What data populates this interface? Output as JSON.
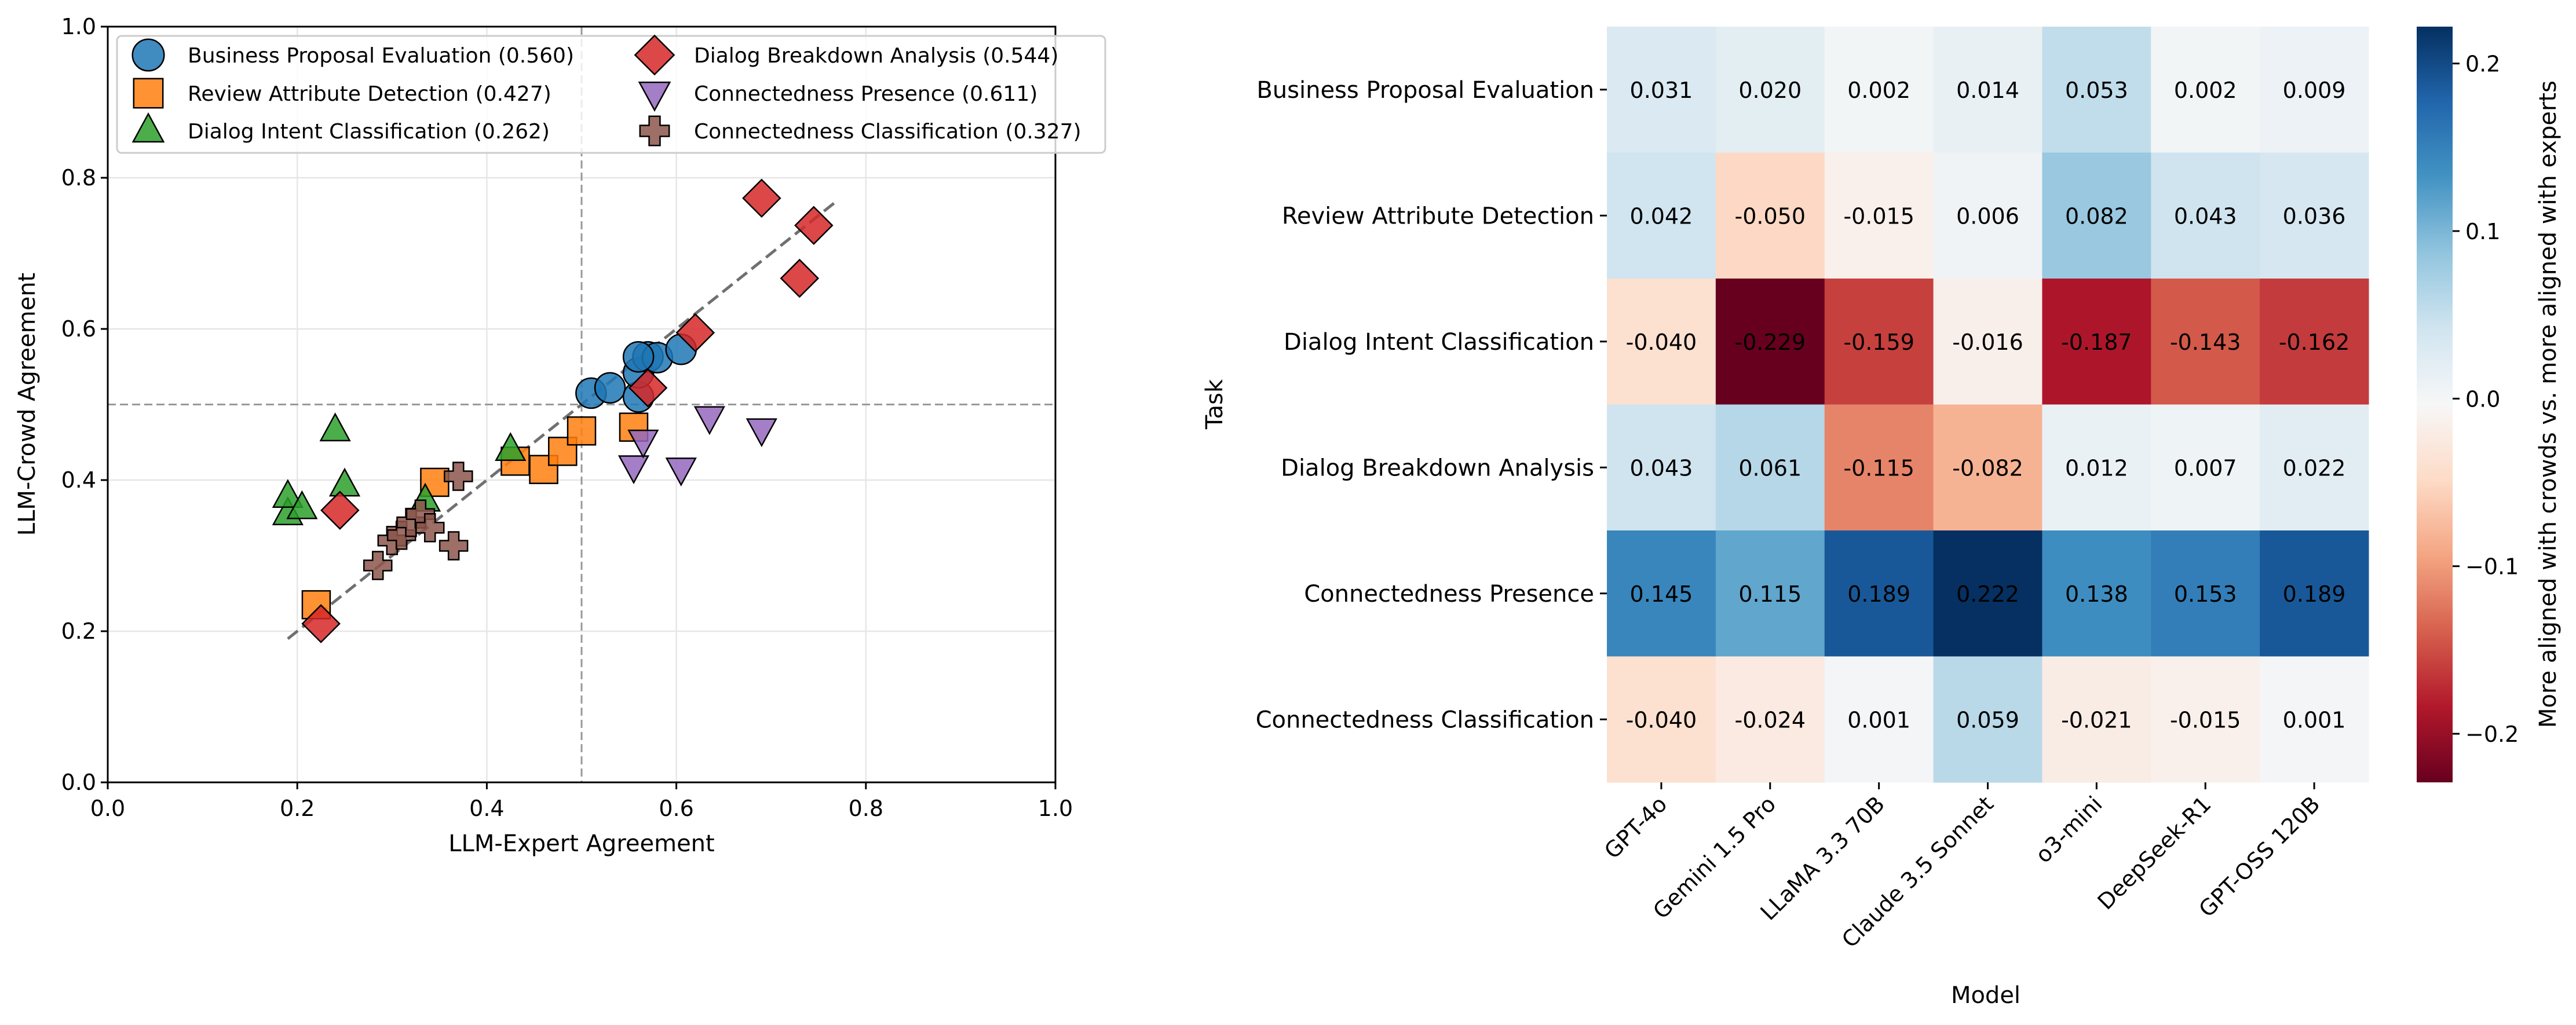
{
  "chart_data": [
    {
      "type": "scatter",
      "title": "",
      "xlabel": "LLM-Expert Agreement",
      "ylabel": "LLM-Crowd Agreement",
      "xlim": [
        0.0,
        1.0
      ],
      "ylim": [
        0.0,
        1.0
      ],
      "xticks": [
        "0.0",
        "0.2",
        "0.4",
        "0.6",
        "0.8",
        "1.0"
      ],
      "yticks": [
        "0.0",
        "0.2",
        "0.4",
        "0.6",
        "0.8",
        "1.0"
      ],
      "grid": true,
      "legend_position": "upper-left",
      "reference_lines": {
        "vertical_x": 0.5,
        "horizontal_y": 0.5
      },
      "trend_line": {
        "x": [
          0.19,
          0.77
        ],
        "y": [
          0.19,
          0.77
        ]
      },
      "series": [
        {
          "name": "Business Proposal Evaluation",
          "legend": "Business Proposal Evaluation (0.560)",
          "marker": "circle",
          "color": "#1f77b4",
          "x": [
            0.51,
            0.53,
            0.56,
            0.56,
            0.57,
            0.58,
            0.605,
            0.56
          ],
          "y": [
            0.515,
            0.522,
            0.51,
            0.542,
            0.563,
            0.562,
            0.573,
            0.563
          ]
        },
        {
          "name": "Review Attribute Detection",
          "legend": "Review Attribute Detection (0.427)",
          "marker": "square",
          "color": "#ff7f0e",
          "x": [
            0.22,
            0.345,
            0.43,
            0.46,
            0.48,
            0.5,
            0.555
          ],
          "y": [
            0.235,
            0.397,
            0.425,
            0.414,
            0.438,
            0.465,
            0.47
          ]
        },
        {
          "name": "Dialog Intent Classification",
          "legend": "Dialog Intent Classification (0.262)",
          "marker": "triangle-up",
          "color": "#2ca02c",
          "x": [
            0.19,
            0.19,
            0.205,
            0.24,
            0.25,
            0.335,
            0.425
          ],
          "y": [
            0.355,
            0.378,
            0.363,
            0.466,
            0.393,
            0.373,
            0.44
          ]
        },
        {
          "name": "Dialog Breakdown Analysis",
          "legend": "Dialog Breakdown Analysis (0.544)",
          "marker": "diamond",
          "color": "#d62728",
          "x": [
            0.225,
            0.245,
            0.57,
            0.62,
            0.69,
            0.73,
            0.745
          ],
          "y": [
            0.21,
            0.36,
            0.522,
            0.595,
            0.773,
            0.667,
            0.737
          ]
        },
        {
          "name": "Connectedness Presence",
          "legend": "Connectedness Presence (0.611)",
          "marker": "triangle-down",
          "color": "#9467bd",
          "x": [
            0.555,
            0.565,
            0.605,
            0.635,
            0.69
          ],
          "y": [
            0.418,
            0.452,
            0.415,
            0.483,
            0.467
          ]
        },
        {
          "name": "Connectedness Classification",
          "legend": "Connectedness Classification (0.327)",
          "marker": "plus",
          "color": "#8c564b",
          "x": [
            0.285,
            0.3,
            0.31,
            0.32,
            0.33,
            0.34,
            0.365,
            0.37
          ],
          "y": [
            0.287,
            0.32,
            0.327,
            0.344,
            0.355,
            0.337,
            0.313,
            0.405
          ]
        }
      ]
    },
    {
      "type": "heatmap",
      "title": "",
      "xlabel": "Model",
      "ylabel": "Task",
      "rows": [
        "Business Proposal Evaluation",
        "Review Attribute Detection",
        "Dialog Intent Classification",
        "Dialog Breakdown Analysis",
        "Connectedness Presence",
        "Connectedness Classification"
      ],
      "cols": [
        "GPT-4o",
        "Gemini 1.5 Pro",
        "LLaMA 3.3 70B",
        "Claude 3.5 Sonnet",
        "o3-mini",
        "DeepSeek-R1",
        "GPT-OSS 120B"
      ],
      "values": [
        [
          0.031,
          0.02,
          0.002,
          0.014,
          0.053,
          0.002,
          0.009
        ],
        [
          0.042,
          -0.05,
          -0.015,
          0.006,
          0.082,
          0.043,
          0.036
        ],
        [
          -0.04,
          -0.229,
          -0.159,
          -0.016,
          -0.187,
          -0.143,
          -0.162
        ],
        [
          0.043,
          0.061,
          -0.115,
          -0.082,
          0.012,
          0.007,
          0.022
        ],
        [
          0.145,
          0.115,
          0.189,
          0.222,
          0.138,
          0.153,
          0.189
        ],
        [
          -0.04,
          -0.024,
          0.001,
          0.059,
          -0.021,
          -0.015,
          0.001
        ]
      ],
      "value_labels": [
        [
          "0.031",
          "0.020",
          "0.002",
          "0.014",
          "0.053",
          "0.002",
          "0.009"
        ],
        [
          "0.042",
          "-0.050",
          "-0.015",
          "0.006",
          "0.082",
          "0.043",
          "0.036"
        ],
        [
          "-0.040",
          "-0.229",
          "-0.159",
          "-0.016",
          "-0.187",
          "-0.143",
          "-0.162"
        ],
        [
          "0.043",
          "0.061",
          "-0.115",
          "-0.082",
          "0.012",
          "0.007",
          "0.022"
        ],
        [
          "0.145",
          "0.115",
          "0.189",
          "0.222",
          "0.138",
          "0.153",
          "0.189"
        ],
        [
          "-0.040",
          "-0.024",
          "0.001",
          "0.059",
          "-0.021",
          "-0.015",
          "0.001"
        ]
      ],
      "colormap": "RdBu",
      "vmin": -0.229,
      "vmax": 0.222,
      "colorbar": {
        "label": "More aligned with crowds vs. more aligned with experts",
        "ticks": [
          -0.2,
          -0.1,
          0.0,
          0.1,
          0.2
        ],
        "tick_labels": [
          "−0.2",
          "−0.1",
          "0.0",
          "0.1",
          "0.2"
        ]
      }
    }
  ]
}
